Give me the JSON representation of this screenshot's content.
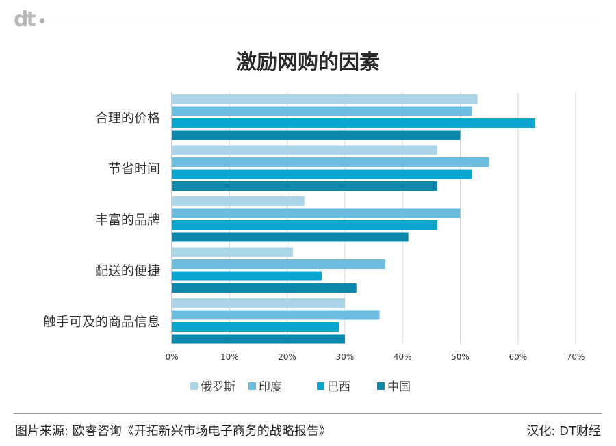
{
  "header": {
    "logo_text": "dt",
    "title": "激励网购的因素"
  },
  "footer": {
    "source": "图片来源: 欧睿咨询《开拓新兴市场电子商务的战略报告》",
    "credit": "汉化: DT财经"
  },
  "chart_data": {
    "type": "bar",
    "orientation": "horizontal",
    "title": "激励网购的因素",
    "categories": [
      "合理的价格",
      "节省时间",
      "丰富的品牌",
      "配送的便捷",
      "触手可及的商品信息"
    ],
    "series": [
      {
        "name": "俄罗斯",
        "color": "#acd6e8",
        "values": [
          53,
          46,
          23,
          21,
          30
        ]
      },
      {
        "name": "印度",
        "color": "#6cbcde",
        "values": [
          52,
          55,
          50,
          37,
          36
        ]
      },
      {
        "name": "巴西",
        "color": "#0aa6cf",
        "values": [
          63,
          52,
          46,
          26,
          29
        ]
      },
      {
        "name": "中国",
        "color": "#0b88ab",
        "values": [
          50,
          46,
          41,
          32,
          30
        ]
      }
    ],
    "x_ticks": [
      "0%",
      "10%",
      "20%",
      "30%",
      "40%",
      "50%",
      "60%",
      "70%"
    ],
    "xlim": [
      0,
      70
    ],
    "unit": "%",
    "grid": true,
    "legend_position": "bottom"
  }
}
